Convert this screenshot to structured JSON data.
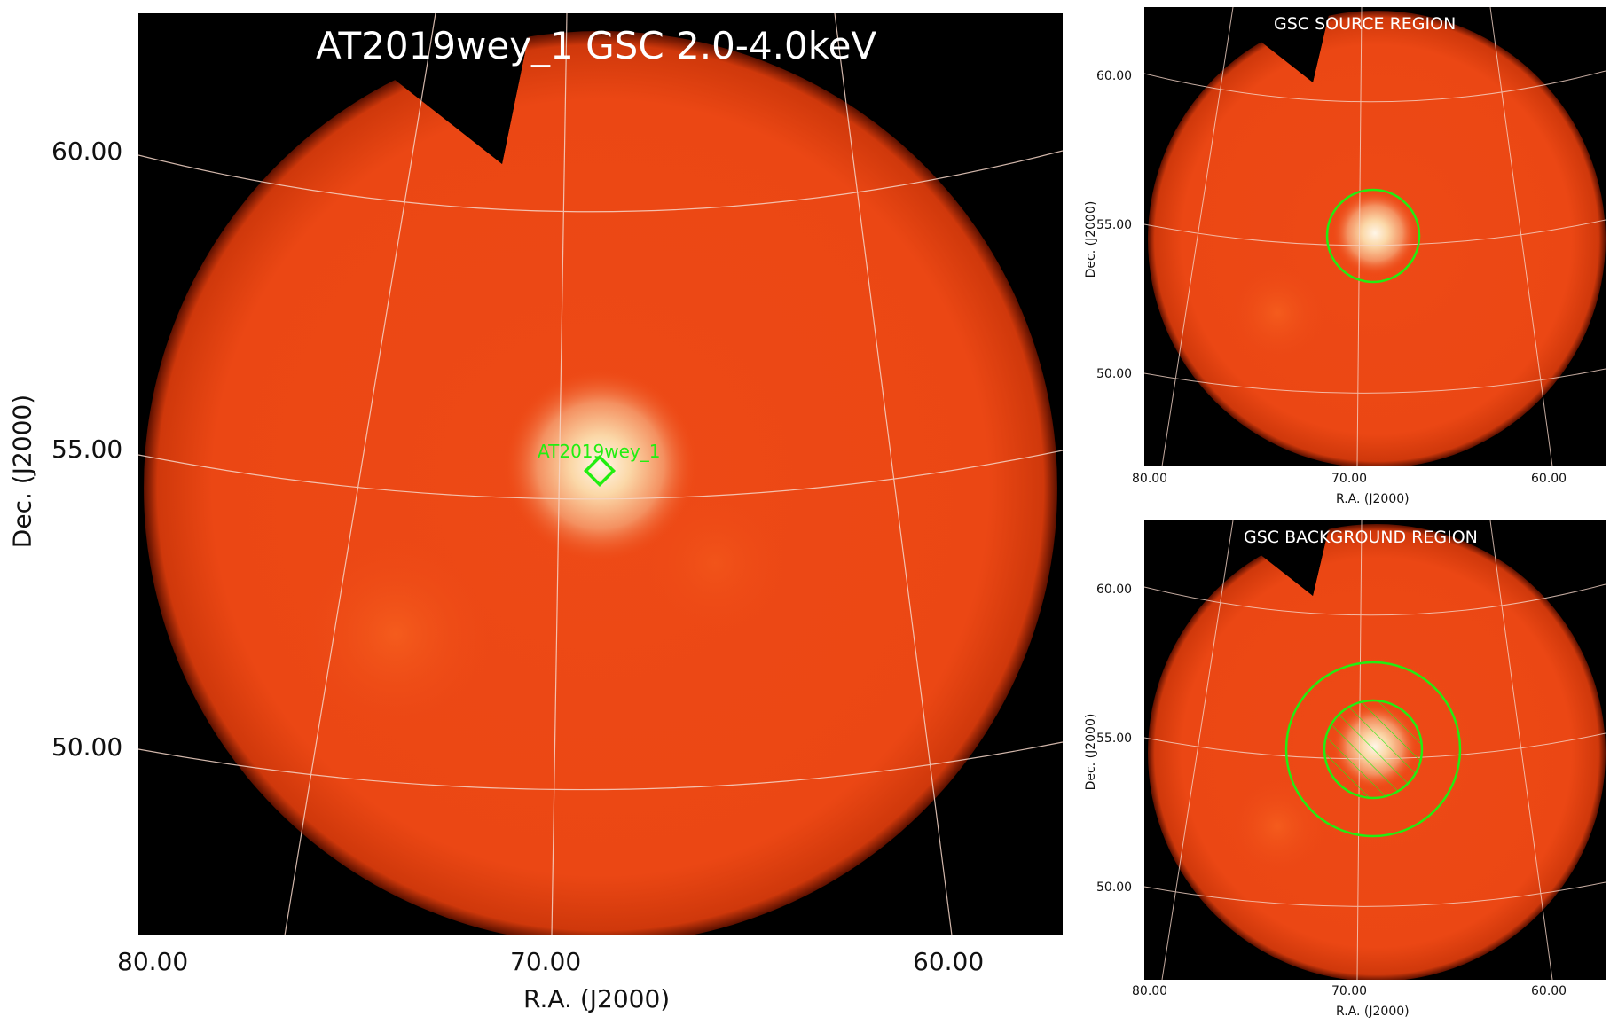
{
  "main": {
    "title": "AT2019wey_1 GSC 2.0-4.0keV",
    "source_label": "AT2019wey_1",
    "xlabel": "R.A. (J2000)",
    "ylabel": "Dec. (J2000)",
    "xticks": [
      "80.00",
      "70.00",
      "60.00"
    ],
    "yticks": [
      "60.00",
      "55.00",
      "50.00"
    ]
  },
  "source_panel": {
    "title": "GSC SOURCE REGION",
    "xlabel": "R.A. (J2000)",
    "ylabel": "Dec. (J2000)",
    "xticks": [
      "80.00",
      "70.00",
      "60.00"
    ],
    "yticks": [
      "60.00",
      "55.00",
      "50.00"
    ]
  },
  "background_panel": {
    "title": "GSC BACKGROUND REGION",
    "xlabel": "R.A. (J2000)",
    "ylabel": "Dec. (J2000)",
    "xticks": [
      "80.00",
      "70.00",
      "60.00"
    ],
    "yticks": [
      "60.00",
      "55.00",
      "50.00"
    ]
  },
  "colors": {
    "map": "#ee4a16",
    "map_dark": "#d63a0c",
    "grid": "#f4d0c0",
    "region": "#22ee11",
    "background": "#000000"
  }
}
